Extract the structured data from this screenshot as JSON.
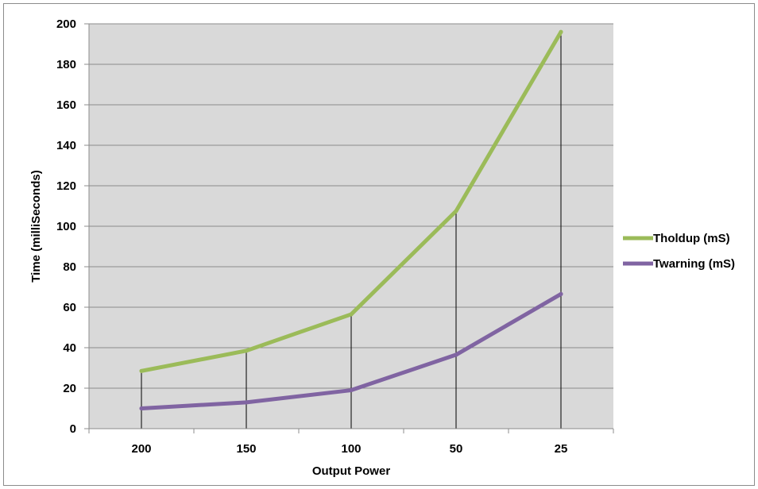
{
  "chart_data": {
    "type": "line",
    "title": "",
    "xlabel": "Output Power",
    "ylabel": "Time (milliSeconds)",
    "categories": [
      "200",
      "150",
      "100",
      "50",
      "25"
    ],
    "ylim": [
      0,
      200
    ],
    "yticks": [
      0,
      20,
      40,
      60,
      80,
      100,
      120,
      140,
      160,
      180,
      200
    ],
    "grid": true,
    "legend": "right",
    "drop_lines": true,
    "series": [
      {
        "name": "Tholdup (mS)",
        "color": "#9bbb59",
        "values": [
          28.5,
          38.5,
          56.5,
          107.5,
          196
        ]
      },
      {
        "name": "Twarning (mS)",
        "color": "#8064a2",
        "values": [
          10,
          13,
          19,
          36.5,
          66.5
        ]
      }
    ],
    "plot_background": "#d9d9d9",
    "gridline_color": "#8c8c8c"
  }
}
